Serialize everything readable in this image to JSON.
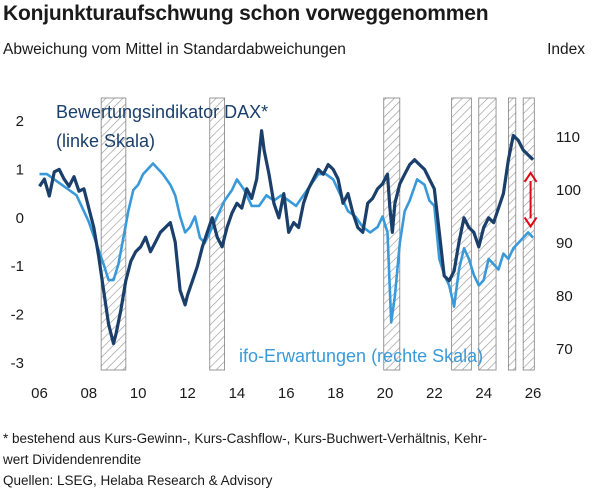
{
  "title": "Konjunkturaufschwung schon vorweggenommen",
  "subtitle": "Abweichung vom Mittel in Standardabweichungen",
  "right_axis_label": "Index",
  "footnote_line1": "* bestehend aus Kurs-Gewinn-, Kurs-Cashflow-, Kurs-Buchwert-Verhältnis, Kehr-",
  "footnote_line2": "wert Dividendenrendite",
  "source": "Quellen: LSEG, Helaba Research & Advisory",
  "colors": {
    "dax": "#1a3f6b",
    "ifo": "#3a9ad9",
    "arrow": "#e30613",
    "shade_stroke": "#808080"
  },
  "chart_data": {
    "type": "line",
    "x_ticks": [
      "06",
      "08",
      "10",
      "12",
      "14",
      "16",
      "18",
      "20",
      "22",
      "24",
      "26"
    ],
    "x_tick_values": [
      2006,
      2008,
      2010,
      2012,
      2014,
      2016,
      2018,
      2020,
      2022,
      2024,
      2026
    ],
    "xlim": [
      2005.9,
      2026.2
    ],
    "y_left_ticks": [
      "2",
      "1",
      "0",
      "-1",
      "-2",
      "-3"
    ],
    "y_left_tick_values": [
      2,
      1,
      0,
      -1,
      -2,
      -3
    ],
    "ylim_left": [
      -3,
      2
    ],
    "y_right_ticks": [
      "110",
      "100",
      "90",
      "80",
      "70"
    ],
    "y_right_tick_values": [
      110,
      100,
      90,
      80,
      70
    ],
    "ylim_right": [
      70,
      110
    ],
    "shaded_periods": [
      [
        2008.5,
        2009.5
      ],
      [
        2012.9,
        2013.5
      ],
      [
        2019.95,
        2020.6
      ],
      [
        2022.7,
        2023.5
      ],
      [
        2023.8,
        2024.5
      ],
      [
        2025.0,
        2025.3
      ],
      [
        2025.6,
        2026.05
      ]
    ],
    "annotation_dax": {
      "line1": "Bewertungsindikator DAX*",
      "line2": "(linke Skala)"
    },
    "annotation_ifo": "ifo-Erwartungen (rechte Skala)",
    "arrow_between": {
      "x": 2025.9,
      "from_left_value": 1.05,
      "to_right_value": 92
    },
    "series": [
      {
        "axis": "left",
        "points": [
          [
            2006.0,
            0.65
          ],
          [
            2006.2,
            0.8
          ],
          [
            2006.4,
            0.45
          ],
          [
            2006.6,
            0.95
          ],
          [
            2006.8,
            1.0
          ],
          [
            2007.0,
            0.8
          ],
          [
            2007.2,
            0.65
          ],
          [
            2007.4,
            0.85
          ],
          [
            2007.6,
            0.55
          ],
          [
            2007.8,
            0.6
          ],
          [
            2008.0,
            0.2
          ],
          [
            2008.2,
            -0.2
          ],
          [
            2008.4,
            -0.8
          ],
          [
            2008.6,
            -1.5
          ],
          [
            2008.8,
            -2.2
          ],
          [
            2009.0,
            -2.6
          ],
          [
            2009.1,
            -2.4
          ],
          [
            2009.3,
            -1.9
          ],
          [
            2009.5,
            -1.3
          ],
          [
            2009.7,
            -0.9
          ],
          [
            2009.9,
            -0.7
          ],
          [
            2010.1,
            -0.6
          ],
          [
            2010.3,
            -0.4
          ],
          [
            2010.5,
            -0.7
          ],
          [
            2010.7,
            -0.5
          ],
          [
            2010.9,
            -0.3
          ],
          [
            2011.1,
            -0.2
          ],
          [
            2011.3,
            -0.1
          ],
          [
            2011.5,
            -0.5
          ],
          [
            2011.7,
            -1.5
          ],
          [
            2011.9,
            -1.8
          ],
          [
            2012.0,
            -1.6
          ],
          [
            2012.2,
            -1.3
          ],
          [
            2012.4,
            -1.0
          ],
          [
            2012.6,
            -0.6
          ],
          [
            2012.8,
            -0.3
          ],
          [
            2013.0,
            0.0
          ],
          [
            2013.2,
            -0.4
          ],
          [
            2013.4,
            -0.6
          ],
          [
            2013.6,
            -0.2
          ],
          [
            2013.8,
            0.1
          ],
          [
            2014.0,
            0.3
          ],
          [
            2014.2,
            0.2
          ],
          [
            2014.4,
            0.6
          ],
          [
            2014.6,
            0.4
          ],
          [
            2014.8,
            0.8
          ],
          [
            2015.0,
            1.8
          ],
          [
            2015.1,
            1.4
          ],
          [
            2015.3,
            0.9
          ],
          [
            2015.5,
            0.3
          ],
          [
            2015.7,
            0.0
          ],
          [
            2015.9,
            0.5
          ],
          [
            2016.1,
            -0.3
          ],
          [
            2016.3,
            -0.1
          ],
          [
            2016.5,
            -0.2
          ],
          [
            2016.7,
            0.3
          ],
          [
            2016.9,
            0.6
          ],
          [
            2017.1,
            0.8
          ],
          [
            2017.3,
            1.0
          ],
          [
            2017.5,
            0.9
          ],
          [
            2017.7,
            1.1
          ],
          [
            2017.9,
            1.0
          ],
          [
            2018.1,
            0.8
          ],
          [
            2018.3,
            0.3
          ],
          [
            2018.5,
            0.5
          ],
          [
            2018.7,
            0.1
          ],
          [
            2018.9,
            -0.2
          ],
          [
            2019.1,
            -0.3
          ],
          [
            2019.3,
            0.3
          ],
          [
            2019.5,
            0.4
          ],
          [
            2019.7,
            0.6
          ],
          [
            2019.9,
            0.7
          ],
          [
            2020.1,
            0.9
          ],
          [
            2020.2,
            0.2
          ],
          [
            2020.3,
            -0.3
          ],
          [
            2020.4,
            0.3
          ],
          [
            2020.6,
            0.7
          ],
          [
            2020.8,
            0.9
          ],
          [
            2021.0,
            1.1
          ],
          [
            2021.2,
            1.2
          ],
          [
            2021.4,
            1.1
          ],
          [
            2021.6,
            1.0
          ],
          [
            2021.8,
            0.8
          ],
          [
            2022.0,
            0.6
          ],
          [
            2022.2,
            -0.3
          ],
          [
            2022.4,
            -1.2
          ],
          [
            2022.6,
            -1.3
          ],
          [
            2022.8,
            -1.1
          ],
          [
            2023.0,
            -0.5
          ],
          [
            2023.2,
            0.0
          ],
          [
            2023.4,
            -0.2
          ],
          [
            2023.6,
            -0.3
          ],
          [
            2023.8,
            -0.6
          ],
          [
            2024.0,
            -0.2
          ],
          [
            2024.2,
            0.0
          ],
          [
            2024.4,
            -0.1
          ],
          [
            2024.6,
            0.2
          ],
          [
            2024.8,
            0.5
          ],
          [
            2025.0,
            1.2
          ],
          [
            2025.2,
            1.7
          ],
          [
            2025.4,
            1.6
          ],
          [
            2025.6,
            1.4
          ],
          [
            2025.8,
            1.3
          ],
          [
            2026.0,
            1.2
          ]
        ]
      },
      {
        "axis": "right",
        "points": [
          [
            2006.0,
            103
          ],
          [
            2006.3,
            103
          ],
          [
            2006.6,
            102
          ],
          [
            2006.9,
            101
          ],
          [
            2007.2,
            100
          ],
          [
            2007.5,
            99
          ],
          [
            2007.8,
            96
          ],
          [
            2008.0,
            94
          ],
          [
            2008.3,
            90
          ],
          [
            2008.6,
            86
          ],
          [
            2008.8,
            83
          ],
          [
            2009.0,
            83
          ],
          [
            2009.2,
            86
          ],
          [
            2009.4,
            91
          ],
          [
            2009.6,
            96
          ],
          [
            2009.8,
            100
          ],
          [
            2010.0,
            101
          ],
          [
            2010.2,
            103
          ],
          [
            2010.4,
            104
          ],
          [
            2010.6,
            105
          ],
          [
            2010.8,
            104
          ],
          [
            2011.0,
            103
          ],
          [
            2011.3,
            101
          ],
          [
            2011.5,
            99
          ],
          [
            2011.7,
            95
          ],
          [
            2011.9,
            92
          ],
          [
            2012.1,
            93
          ],
          [
            2012.3,
            95
          ],
          [
            2012.5,
            91
          ],
          [
            2012.7,
            90
          ],
          [
            2012.9,
            92
          ],
          [
            2013.1,
            94
          ],
          [
            2013.3,
            96
          ],
          [
            2013.5,
            98
          ],
          [
            2013.8,
            100
          ],
          [
            2014.0,
            102
          ],
          [
            2014.3,
            100
          ],
          [
            2014.6,
            97
          ],
          [
            2014.9,
            97
          ],
          [
            2015.2,
            99
          ],
          [
            2015.5,
            98
          ],
          [
            2015.8,
            99
          ],
          [
            2016.1,
            98
          ],
          [
            2016.4,
            97
          ],
          [
            2016.7,
            99
          ],
          [
            2017.0,
            101
          ],
          [
            2017.3,
            103
          ],
          [
            2017.6,
            103
          ],
          [
            2017.9,
            102
          ],
          [
            2018.2,
            99
          ],
          [
            2018.5,
            96
          ],
          [
            2018.8,
            95
          ],
          [
            2019.1,
            93
          ],
          [
            2019.4,
            92
          ],
          [
            2019.7,
            93
          ],
          [
            2019.9,
            95
          ],
          [
            2020.1,
            92
          ],
          [
            2020.25,
            75
          ],
          [
            2020.4,
            80
          ],
          [
            2020.6,
            90
          ],
          [
            2020.8,
            96
          ],
          [
            2021.0,
            98
          ],
          [
            2021.3,
            102
          ],
          [
            2021.6,
            101
          ],
          [
            2021.8,
            98
          ],
          [
            2022.0,
            97
          ],
          [
            2022.2,
            87
          ],
          [
            2022.4,
            84
          ],
          [
            2022.6,
            82
          ],
          [
            2022.8,
            78
          ],
          [
            2023.0,
            85
          ],
          [
            2023.2,
            89
          ],
          [
            2023.4,
            87
          ],
          [
            2023.6,
            84
          ],
          [
            2023.8,
            82
          ],
          [
            2024.0,
            83
          ],
          [
            2024.2,
            87
          ],
          [
            2024.4,
            86
          ],
          [
            2024.6,
            85
          ],
          [
            2024.8,
            88
          ],
          [
            2025.0,
            87
          ],
          [
            2025.2,
            89
          ],
          [
            2025.4,
            90
          ],
          [
            2025.6,
            91
          ],
          [
            2025.8,
            92
          ],
          [
            2026.0,
            91
          ]
        ]
      }
    ]
  }
}
